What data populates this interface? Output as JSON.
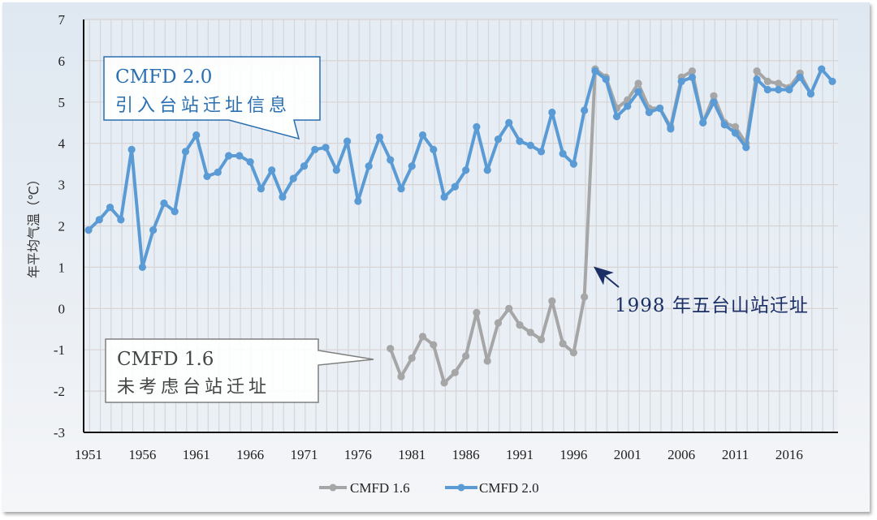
{
  "chart_data": {
    "type": "line",
    "title": "",
    "xlabel": "",
    "ylabel": "年平均气温（℃）",
    "ylim": [
      -3,
      7
    ],
    "yticks": [
      -3,
      -2,
      -1,
      0,
      1,
      2,
      3,
      4,
      5,
      6,
      7
    ],
    "xlim": [
      1951,
      2020
    ],
    "xticks": [
      1951,
      1956,
      1961,
      1966,
      1971,
      1976,
      1981,
      1986,
      1991,
      1996,
      2001,
      2006,
      2011,
      2016
    ],
    "grid": true,
    "legend_position": "bottom",
    "series": [
      {
        "name": "CMFD 1.6",
        "color": "#a6a6a6",
        "start_year": 1979,
        "values": [
          -0.97,
          -1.65,
          -1.2,
          -0.68,
          -0.88,
          -1.8,
          -1.55,
          -1.15,
          -0.1,
          -1.27,
          -0.35,
          0.0,
          -0.4,
          -0.58,
          -0.75,
          0.18,
          -0.85,
          -1.07,
          0.28,
          5.8,
          5.6,
          4.85,
          5.05,
          5.45,
          4.85,
          4.85,
          4.4,
          5.6,
          5.75,
          4.5,
          5.15,
          4.5,
          4.4,
          4.0,
          5.75,
          5.5,
          5.45,
          5.35,
          5.7,
          5.2
        ]
      },
      {
        "name": "CMFD 2.0",
        "color": "#5b9bd5",
        "start_year": 1951,
        "values": [
          1.9,
          2.15,
          2.45,
          2.15,
          3.85,
          1.0,
          1.9,
          2.55,
          2.35,
          3.8,
          4.2,
          3.2,
          3.3,
          3.7,
          3.7,
          3.55,
          2.9,
          3.35,
          2.7,
          3.15,
          3.45,
          3.85,
          3.9,
          3.35,
          4.05,
          2.6,
          3.45,
          4.15,
          3.6,
          2.9,
          3.45,
          4.2,
          3.85,
          2.7,
          2.95,
          3.35,
          4.4,
          3.35,
          4.1,
          4.5,
          4.05,
          3.95,
          3.8,
          4.75,
          3.75,
          3.5,
          4.8,
          5.75,
          5.55,
          4.65,
          4.9,
          5.25,
          4.75,
          4.85,
          4.35,
          5.5,
          5.6,
          4.5,
          5.0,
          4.45,
          4.25,
          3.9,
          5.55,
          5.3,
          5.3,
          5.3,
          5.6,
          5.2,
          5.8,
          5.5
        ]
      }
    ],
    "annotations": [
      {
        "id": "cmfd20",
        "line1": "CMFD 2.0",
        "line2": "引入台站迁址信息",
        "color": "#2a6fb0"
      },
      {
        "id": "cmfd16",
        "line1": "CMFD 1.6",
        "line2": "未考虑台站迁址",
        "color": "#444444"
      },
      {
        "id": "relocation",
        "text": "1998 年五台山站迁址",
        "color": "#1b2f66"
      }
    ]
  }
}
